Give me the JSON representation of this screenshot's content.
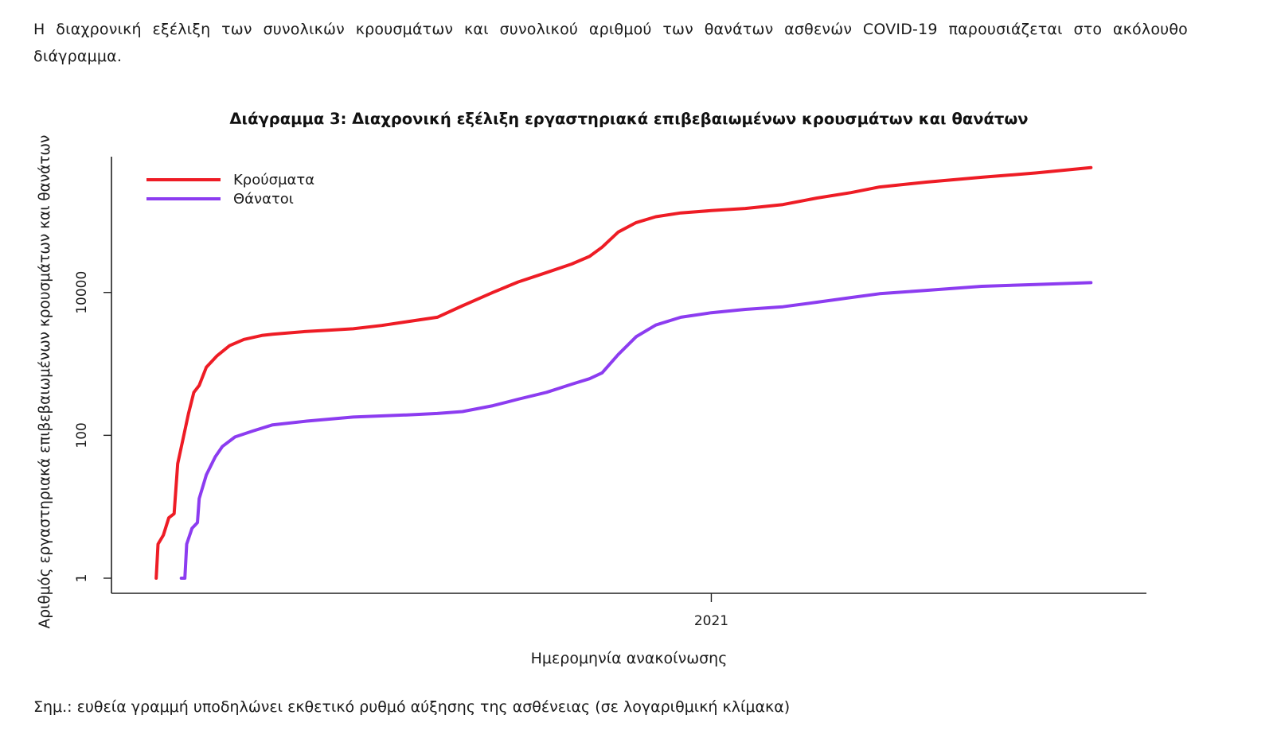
{
  "intro_text": "Η διαχρονική εξέλιξη των συνολικών κρουσμάτων και συνολικού αριθμού των θανάτων ασθενών COVID-19 παρουσιάζεται στο ακόλουθο διάγραμμα.",
  "note": "Σημ.: ευθεία γραμμή υποδηλώνει εκθετικό ρυθμό αύξησης της ασθένειας (σε λογαριθμική κλίμακα)",
  "chart_data": {
    "type": "line",
    "title": "Διάγραμμα 3: Διαχρονική εξέλιξη εργαστηριακά επιβεβαιωμένων κρουσμάτων και θανάτων",
    "xlabel": "Ημερομηνία ανακοίνωσης",
    "ylabel": "Αριθμός εργαστηριακά επιβεβαιωμένων κρουσμάτων και θανάτων",
    "y_scale": "log",
    "ylim": [
      1,
      700000
    ],
    "xlim": [
      "2020-02-01",
      "2021-09-01"
    ],
    "x_ticks": [
      {
        "date": "2021-01-01",
        "label": "2021"
      }
    ],
    "y_ticks": [
      {
        "value": 1,
        "label": "1"
      },
      {
        "value": 100,
        "label": "100"
      },
      {
        "value": 10000,
        "label": "10000"
      }
    ],
    "grid": false,
    "legend_position": "top-left",
    "series": [
      {
        "name": "Κρούσματα",
        "color": "#ee1c25",
        "points": [
          [
            "2020-02-26",
            1
          ],
          [
            "2020-02-27",
            3
          ],
          [
            "2020-03-01",
            4
          ],
          [
            "2020-03-04",
            7
          ],
          [
            "2020-03-07",
            8
          ],
          [
            "2020-03-09",
            40
          ],
          [
            "2020-03-12",
            90
          ],
          [
            "2020-03-15",
            200
          ],
          [
            "2020-03-18",
            400
          ],
          [
            "2020-03-21",
            500
          ],
          [
            "2020-03-25",
            900
          ],
          [
            "2020-03-31",
            1300
          ],
          [
            "2020-04-07",
            1800
          ],
          [
            "2020-04-15",
            2200
          ],
          [
            "2020-04-25",
            2500
          ],
          [
            "2020-05-01",
            2600
          ],
          [
            "2020-05-20",
            2850
          ],
          [
            "2020-06-01",
            2950
          ],
          [
            "2020-06-15",
            3100
          ],
          [
            "2020-07-01",
            3450
          ],
          [
            "2020-07-15",
            3900
          ],
          [
            "2020-08-01",
            4500
          ],
          [
            "2020-08-15",
            6500
          ],
          [
            "2020-09-01",
            10000
          ],
          [
            "2020-09-15",
            14000
          ],
          [
            "2020-10-01",
            19000
          ],
          [
            "2020-10-15",
            25000
          ],
          [
            "2020-10-25",
            32000
          ],
          [
            "2020-11-01",
            43000
          ],
          [
            "2020-11-10",
            70000
          ],
          [
            "2020-11-20",
            95000
          ],
          [
            "2020-12-01",
            115000
          ],
          [
            "2020-12-15",
            130000
          ],
          [
            "2021-01-01",
            140000
          ],
          [
            "2021-01-20",
            150000
          ],
          [
            "2021-02-10",
            170000
          ],
          [
            "2021-03-01",
            210000
          ],
          [
            "2021-03-20",
            250000
          ],
          [
            "2021-04-05",
            300000
          ],
          [
            "2021-05-01",
            350000
          ],
          [
            "2021-06-01",
            410000
          ],
          [
            "2021-07-01",
            470000
          ],
          [
            "2021-08-01",
            560000
          ]
        ]
      },
      {
        "name": "Θάνατοι",
        "color": "#8c3cf0",
        "points": [
          [
            "2020-03-11",
            1
          ],
          [
            "2020-03-13",
            1
          ],
          [
            "2020-03-14",
            3
          ],
          [
            "2020-03-17",
            5
          ],
          [
            "2020-03-20",
            6
          ],
          [
            "2020-03-21",
            13
          ],
          [
            "2020-03-25",
            28
          ],
          [
            "2020-03-30",
            50
          ],
          [
            "2020-04-03",
            70
          ],
          [
            "2020-04-10",
            95
          ],
          [
            "2020-04-20",
            115
          ],
          [
            "2020-05-01",
            140
          ],
          [
            "2020-05-20",
            158
          ],
          [
            "2020-06-15",
            180
          ],
          [
            "2020-07-15",
            193
          ],
          [
            "2020-08-01",
            202
          ],
          [
            "2020-08-15",
            215
          ],
          [
            "2020-09-01",
            260
          ],
          [
            "2020-09-15",
            320
          ],
          [
            "2020-10-01",
            400
          ],
          [
            "2020-10-15",
            520
          ],
          [
            "2020-10-25",
            620
          ],
          [
            "2020-11-01",
            750
          ],
          [
            "2020-11-10",
            1350
          ],
          [
            "2020-11-20",
            2400
          ],
          [
            "2020-12-01",
            3500
          ],
          [
            "2020-12-15",
            4500
          ],
          [
            "2021-01-01",
            5200
          ],
          [
            "2021-01-20",
            5800
          ],
          [
            "2021-02-10",
            6300
          ],
          [
            "2021-03-01",
            7300
          ],
          [
            "2021-03-20",
            8500
          ],
          [
            "2021-04-05",
            9600
          ],
          [
            "2021-05-01",
            10700
          ],
          [
            "2021-06-01",
            12200
          ],
          [
            "2021-07-01",
            12900
          ],
          [
            "2021-08-01",
            13700
          ]
        ]
      }
    ]
  }
}
